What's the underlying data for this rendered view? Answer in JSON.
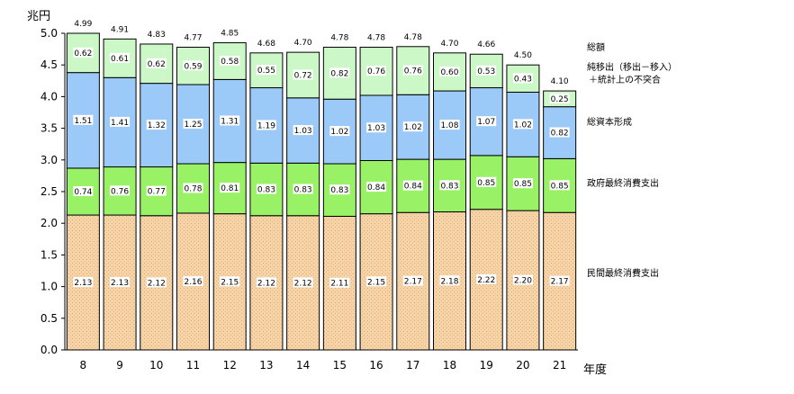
{
  "chart_data": {
    "type": "bar",
    "stacked": true,
    "ylabel": "兆円",
    "xlabel": "年度",
    "ylim": [
      0,
      5.0
    ],
    "y_ticks": [
      "0.0",
      "0.5",
      "1.0",
      "1.5",
      "2.0",
      "2.5",
      "3.0",
      "3.5",
      "4.0",
      "4.5",
      "5.0"
    ],
    "categories": [
      "8",
      "9",
      "10",
      "11",
      "12",
      "13",
      "14",
      "15",
      "16",
      "17",
      "18",
      "19",
      "20",
      "21"
    ],
    "totals": [
      "4.99",
      "4.91",
      "4.83",
      "4.77",
      "4.85",
      "4.68",
      "4.70",
      "4.78",
      "4.78",
      "4.78",
      "4.70",
      "4.66",
      "4.50",
      "4.10"
    ],
    "series": [
      {
        "name": "民間最終消費支出",
        "color": "#f6d4a8",
        "values": [
          2.13,
          2.13,
          2.12,
          2.16,
          2.15,
          2.12,
          2.12,
          2.11,
          2.15,
          2.17,
          2.18,
          2.22,
          2.2,
          2.17
        ],
        "labels": [
          "2.13",
          "2.13",
          "2.12",
          "2.16",
          "2.15",
          "2.12",
          "2.12",
          "2.11",
          "2.15",
          "2.17",
          "2.18",
          "2.22",
          "2.20",
          "2.17"
        ]
      },
      {
        "name": "政府最終消費支出",
        "color": "#99f266",
        "values": [
          0.74,
          0.76,
          0.77,
          0.78,
          0.81,
          0.83,
          0.83,
          0.83,
          0.84,
          0.84,
          0.83,
          0.85,
          0.85,
          0.85
        ],
        "labels": [
          "0.74",
          "0.76",
          "0.77",
          "0.78",
          "0.81",
          "0.83",
          "0.83",
          "0.83",
          "0.84",
          "0.84",
          "0.83",
          "0.85",
          "0.85",
          "0.85"
        ]
      },
      {
        "name": "総資本形成",
        "color": "#9ccaf8",
        "values": [
          1.51,
          1.41,
          1.32,
          1.25,
          1.31,
          1.19,
          1.03,
          1.02,
          1.03,
          1.02,
          1.08,
          1.07,
          1.02,
          0.82
        ],
        "labels": [
          "1.51",
          "1.41",
          "1.32",
          "1.25",
          "1.31",
          "1.19",
          "1.03",
          "1.02",
          "1.03",
          "1.02",
          "1.08",
          "1.07",
          "1.02",
          "0.82"
        ]
      },
      {
        "name": "純移出（移出－移入）＋統計上の不突合",
        "legend_lines": [
          "純移出（移出－移入）",
          "＋統計上の不突合"
        ],
        "color": "#ccf8c8",
        "values": [
          0.62,
          0.61,
          0.62,
          0.59,
          0.58,
          0.55,
          0.72,
          0.82,
          0.76,
          0.76,
          0.6,
          0.53,
          0.43,
          0.25
        ],
        "labels": [
          "0.62",
          "0.61",
          "0.62",
          "0.59",
          "0.58",
          "0.55",
          "0.72",
          "0.82",
          "0.76",
          "0.76",
          "0.60",
          "0.53",
          "0.43",
          "0.25"
        ]
      }
    ],
    "legend_total": "総額",
    "grid": false,
    "legend_position": "right"
  }
}
